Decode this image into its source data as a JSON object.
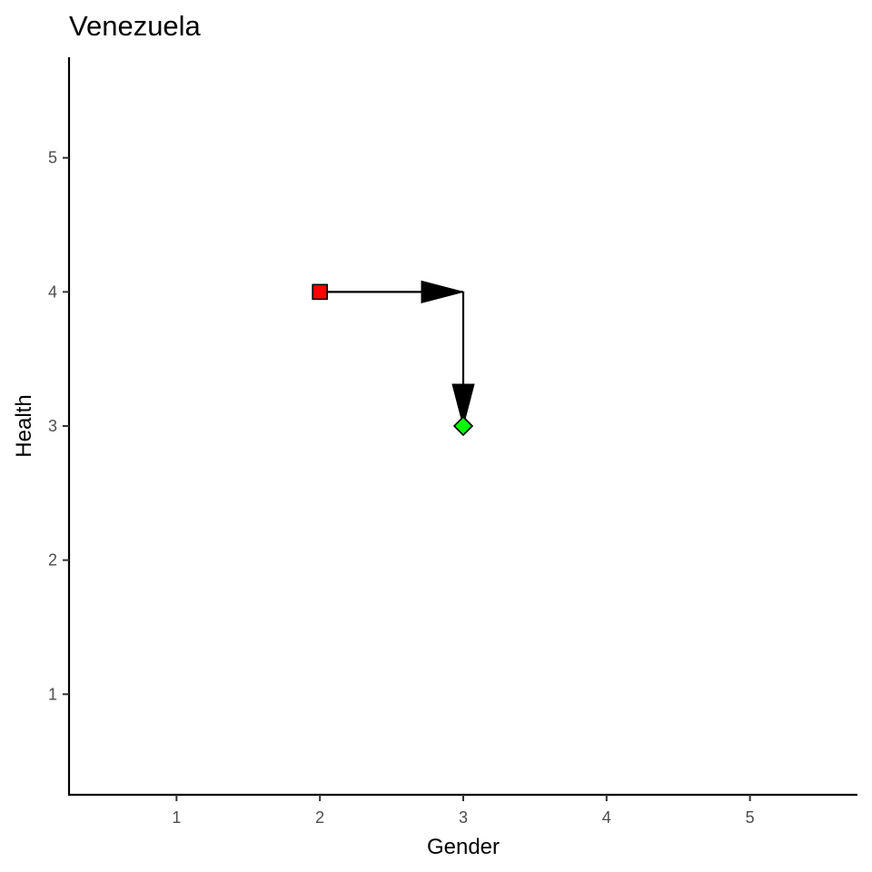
{
  "chart_data": {
    "type": "scatter",
    "title": "Venezuela",
    "xlabel": "Gender",
    "ylabel": "Health",
    "xlim": [
      0.25,
      5.75
    ],
    "ylim": [
      0.25,
      5.75
    ],
    "x_ticks": [
      1,
      2,
      3,
      4,
      5
    ],
    "y_ticks": [
      1,
      2,
      3,
      4,
      5
    ],
    "x_tick_labels": [
      "1",
      "2",
      "3",
      "4",
      "5"
    ],
    "y_tick_labels": [
      "1",
      "2",
      "3",
      "4",
      "5"
    ],
    "grid": false,
    "legend": "none",
    "points": [
      {
        "x": 2,
        "y": 4,
        "shape": "square",
        "color": "#ff0000"
      },
      {
        "x": 3,
        "y": 3,
        "shape": "diamond",
        "color": "#00ff00"
      }
    ],
    "path": [
      {
        "x": 2,
        "y": 4
      },
      {
        "x": 3,
        "y": 4
      },
      {
        "x": 3,
        "y": 3
      }
    ],
    "arrow_color": "#000000"
  }
}
